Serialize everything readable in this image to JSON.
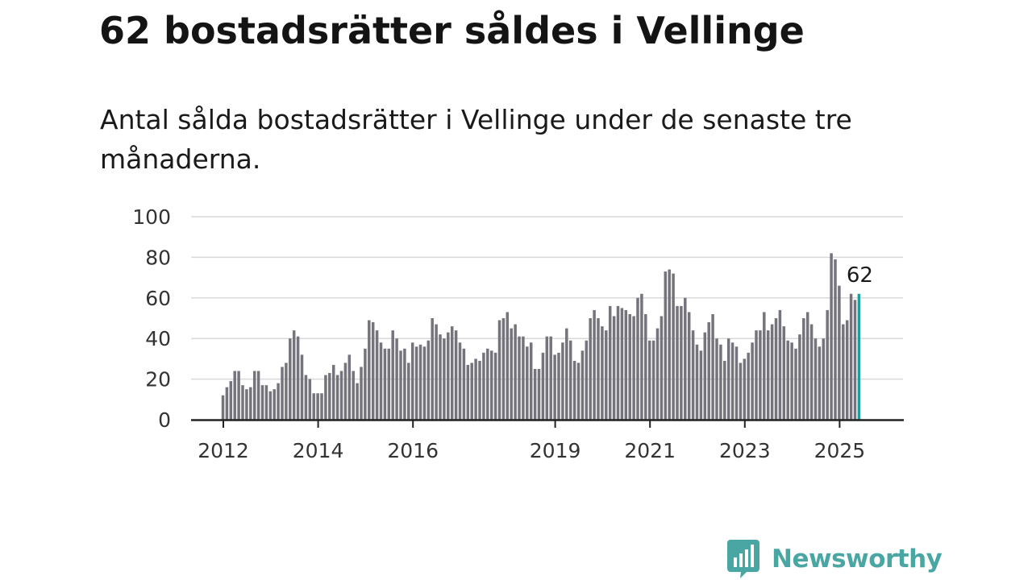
{
  "title": "62 bostadsrätter såldes i Vellinge",
  "subtitle": "Antal sålda bostadsrätter i Vellinge under de senaste tre månaderna.",
  "brand": {
    "name": "Newsworthy",
    "color": "#4aa6a3",
    "logo_icon": "newsworthy-chart-bubble-icon"
  },
  "chart_data": {
    "type": "bar",
    "title": "62 bostadsrätter såldes i Vellinge",
    "subtitle": "Antal sålda bostadsrätter i Vellinge under de senaste tre månaderna.",
    "xlabel": "",
    "ylabel": "",
    "ylim": [
      0,
      100
    ],
    "yticks": [
      "0",
      "20",
      "40",
      "60",
      "80",
      "100"
    ],
    "xticks": [
      "2012",
      "2014",
      "2016",
      "2019",
      "2021",
      "2023",
      "2025"
    ],
    "x_start": "2012-01",
    "frequency": "monthly",
    "grid": true,
    "bar_color": "#75737b",
    "highlight_color": "#1f9ea0",
    "highlight_label": "62",
    "values": [
      12,
      16,
      19,
      24,
      24,
      17,
      15,
      16,
      24,
      24,
      17,
      17,
      14,
      15,
      18,
      26,
      28,
      40,
      44,
      41,
      32,
      22,
      20,
      13,
      13,
      13,
      22,
      23,
      27,
      22,
      24,
      28,
      32,
      24,
      18,
      26,
      35,
      49,
      48,
      44,
      38,
      35,
      35,
      44,
      40,
      34,
      35,
      28,
      38,
      36,
      37,
      36,
      39,
      50,
      47,
      42,
      40,
      43,
      46,
      44,
      38,
      35,
      27,
      28,
      30,
      29,
      33,
      35,
      34,
      33,
      49,
      50,
      53,
      45,
      47,
      41,
      41,
      36,
      38,
      25,
      25,
      33,
      41,
      41,
      32,
      33,
      38,
      45,
      39,
      29,
      28,
      34,
      39,
      50,
      54,
      50,
      46,
      44,
      56,
      51,
      56,
      55,
      54,
      52,
      51,
      60,
      62,
      52,
      39,
      39,
      45,
      51,
      73,
      74,
      72,
      56,
      56,
      60,
      53,
      44,
      37,
      34,
      43,
      48,
      52,
      40,
      37,
      29,
      40,
      38,
      36,
      28,
      30,
      33,
      38,
      44,
      44,
      53,
      44,
      47,
      50,
      54,
      46,
      39,
      38,
      35,
      42,
      50,
      53,
      47,
      40,
      36,
      40,
      54,
      82,
      79,
      66,
      47,
      49,
      62,
      59,
      62
    ]
  }
}
